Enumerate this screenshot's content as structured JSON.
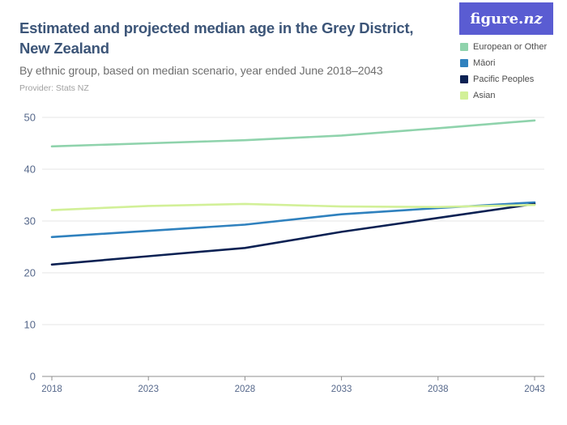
{
  "header": {
    "title_line1": "Estimated and projected median age in the Grey District,",
    "title_line2": "New Zealand",
    "subtitle": "By ethnic group, based on median scenario, year ended June 2018–2043",
    "provider": "Provider: Stats NZ",
    "logo": {
      "part1": "figure.",
      "part2": "nz"
    }
  },
  "legend": {
    "position": "top-right",
    "items": [
      {
        "label": "European or Other",
        "color": "#8fd3ac"
      },
      {
        "label": "Māori",
        "color": "#2f81be"
      },
      {
        "label": "Pacific Peoples",
        "color": "#0b2153"
      },
      {
        "label": "Asian",
        "color": "#d2f098"
      }
    ]
  },
  "chart_data": {
    "type": "line",
    "title": "Estimated and projected median age in the Grey District, New Zealand",
    "subtitle": "By ethnic group, based on median scenario, year ended June 2018–2043",
    "x": [
      2018,
      2023,
      2028,
      2033,
      2038,
      2043
    ],
    "x_tick_labels": [
      "2018",
      "2023",
      "2028",
      "2033",
      "2038",
      "2043"
    ],
    "y_ticks": [
      0,
      10,
      20,
      30,
      40,
      50
    ],
    "ylim": [
      0,
      50
    ],
    "xlabel": "",
    "ylabel": "",
    "grid": true,
    "legend_position": "top-right",
    "series": [
      {
        "name": "European or Other",
        "color": "#8fd3ac",
        "values": [
          44.4,
          45.0,
          45.6,
          46.5,
          47.9,
          49.4
        ]
      },
      {
        "name": "Māori",
        "color": "#2f81be",
        "values": [
          26.9,
          28.1,
          29.3,
          31.3,
          32.5,
          33.6
        ]
      },
      {
        "name": "Pacific Peoples",
        "color": "#0b2153",
        "values": [
          21.6,
          23.2,
          24.8,
          27.9,
          30.6,
          33.3
        ]
      },
      {
        "name": "Asian",
        "color": "#d2f098",
        "values": [
          32.1,
          32.9,
          33.3,
          32.8,
          32.7,
          33.1
        ]
      }
    ],
    "colors": {
      "gridline": "#e5e5e5",
      "axis": "#8f8f8f",
      "tick_label": "#56688b"
    }
  }
}
